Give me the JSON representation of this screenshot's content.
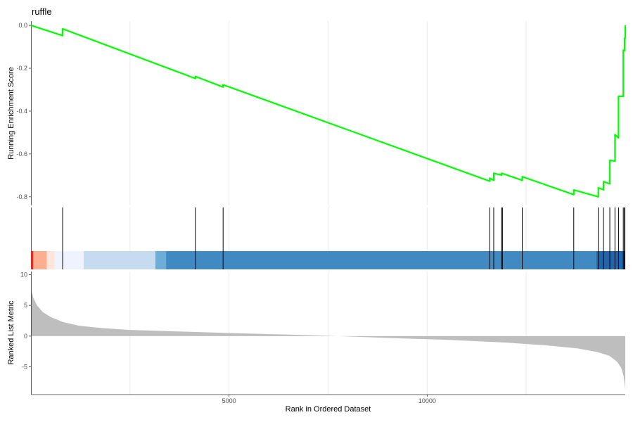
{
  "chart_data": {
    "type": "line",
    "title": "ruffle",
    "xlabel": "Rank in Ordered Dataset",
    "xlim": [
      0,
      15000
    ],
    "x_ticks": [
      5000,
      10000
    ],
    "x_tick_labels": [
      "5000",
      "10000"
    ],
    "colors": {
      "enrichment_line": "#00ff00",
      "hit_line": "#000000",
      "metric_area": "#bebebe",
      "gridline": "#ebebeb"
    },
    "enrichment_panel": {
      "ylabel": "Running Enrichment Score",
      "ylim": [
        -0.84,
        0.02
      ],
      "y_ticks": [
        0.0,
        -0.2,
        -0.4,
        -0.6,
        -0.8
      ],
      "y_tick_labels": [
        "0.0",
        "-0.2",
        "-0.4",
        "-0.6",
        "-0.8"
      ],
      "series": [
        {
          "x": [
            0,
            800,
            800,
            4150,
            4150,
            4850,
            4850,
            11580,
            11580,
            11680,
            11680,
            11880,
            11880,
            12400,
            12400,
            13700,
            13700,
            14320,
            14320,
            14450,
            14450,
            14610,
            14610,
            14740,
            14740,
            14830,
            14830,
            14950,
            14950,
            14980,
            14980,
            15000,
            15000
          ],
          "y": [
            0.0,
            -0.048,
            -0.016,
            -0.248,
            -0.238,
            -0.288,
            -0.277,
            -0.727,
            -0.713,
            -0.723,
            -0.69,
            -0.699,
            -0.69,
            -0.723,
            -0.706,
            -0.79,
            -0.768,
            -0.8,
            -0.758,
            -0.767,
            -0.729,
            -0.74,
            -0.63,
            -0.634,
            -0.51,
            -0.525,
            -0.331,
            -0.331,
            -0.116,
            -0.118,
            -0.06,
            -0.06,
            0.0
          ]
        }
      ]
    },
    "hits_panel": {
      "hit_positions": [
        800,
        4150,
        4850,
        11580,
        11680,
        11880,
        11900,
        12400,
        13700,
        14320,
        14450,
        14610,
        14740,
        14830,
        14950,
        14980,
        14990,
        15000
      ],
      "heatmap_bands": [
        {
          "start": 0,
          "end": 60,
          "color": "#de2d26"
        },
        {
          "start": 60,
          "end": 400,
          "color": "#fcae91"
        },
        {
          "start": 400,
          "end": 600,
          "color": "#fee5d9"
        },
        {
          "start": 600,
          "end": 1330,
          "color": "#eff3ff"
        },
        {
          "start": 1330,
          "end": 3140,
          "color": "#c6dbef"
        },
        {
          "start": 3140,
          "end": 3410,
          "color": "#6baed6"
        },
        {
          "start": 3410,
          "end": 14270,
          "color": "#4189c1"
        },
        {
          "start": 14270,
          "end": 15000,
          "color": "#2166ac"
        }
      ]
    },
    "metric_panel": {
      "ylabel": "Ranked List Metric",
      "ylim": [
        -9.5,
        10.5
      ],
      "y_ticks": [
        10,
        5,
        0,
        -5
      ],
      "y_tick_labels": [
        "10",
        "5",
        "0",
        "-5"
      ],
      "curve": {
        "x": [
          0,
          20,
          60,
          150,
          300,
          500,
          800,
          1200,
          1800,
          2500,
          3500,
          5000,
          6500,
          7500,
          8200,
          9000,
          10500,
          12000,
          13000,
          13800,
          14300,
          14600,
          14800,
          14900,
          14960,
          15000
        ],
        "y": [
          7.8,
          7.2,
          6.2,
          5.0,
          3.9,
          3.1,
          2.3,
          1.7,
          1.3,
          1.0,
          0.8,
          0.5,
          0.25,
          0.05,
          -0.1,
          -0.3,
          -0.6,
          -1.05,
          -1.5,
          -2.0,
          -2.6,
          -3.2,
          -4.2,
          -5.2,
          -6.5,
          -8.7
        ]
      }
    }
  }
}
